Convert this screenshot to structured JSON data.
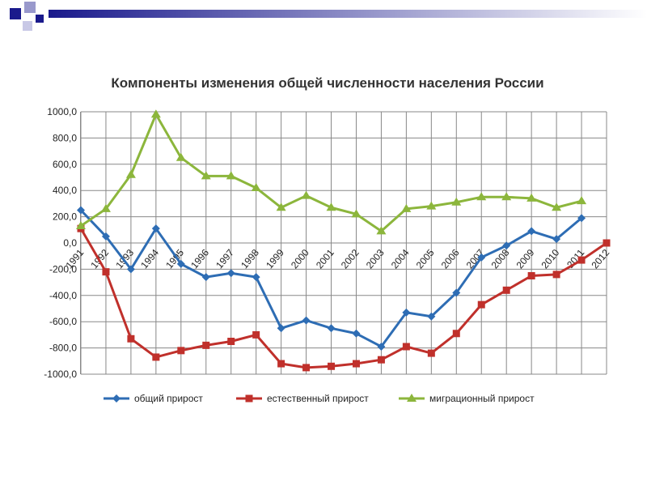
{
  "chart_data": {
    "type": "line",
    "title": "Компоненты изменения общей численности населения России",
    "categories": [
      "1991",
      "1992",
      "1993",
      "1994",
      "1995",
      "1996",
      "1997",
      "1998",
      "1999",
      "2000",
      "2001",
      "2002",
      "2003",
      "2004",
      "2005",
      "2006",
      "2007",
      "2008",
      "2009",
      "2010",
      "2011",
      "2012"
    ],
    "series": [
      {
        "name": "общий прирост",
        "color": "#2e6db4",
        "marker": "diamond",
        "values": [
          250,
          50,
          -200,
          110,
          -160,
          -260,
          -230,
          -260,
          -650,
          -590,
          -650,
          -690,
          -790,
          -530,
          -560,
          -380,
          -110,
          -20,
          90,
          30,
          190,
          null
        ]
      },
      {
        "name": "естественный прирост",
        "color": "#c0302b",
        "marker": "square",
        "values": [
          110,
          -220,
          -730,
          -870,
          -820,
          -780,
          -750,
          -700,
          -920,
          -950,
          -940,
          -920,
          -890,
          -790,
          -840,
          -690,
          -470,
          -360,
          -250,
          -240,
          -130,
          0
        ]
      },
      {
        "name": "миграционный прирост",
        "color": "#8cb63c",
        "marker": "triangle",
        "values": [
          130,
          260,
          520,
          980,
          650,
          510,
          510,
          420,
          270,
          360,
          270,
          220,
          90,
          260,
          280,
          310,
          350,
          350,
          340,
          270,
          320,
          null
        ]
      }
    ],
    "ylim": [
      -1000,
      1000
    ],
    "yticks": [
      {
        "value": -1000,
        "label": "-1000,0"
      },
      {
        "value": -800,
        "label": "-800,0"
      },
      {
        "value": -600,
        "label": "-600,0"
      },
      {
        "value": -400,
        "label": "-400,0"
      },
      {
        "value": -200,
        "label": "-200,0"
      },
      {
        "value": 0,
        "label": "0,0"
      },
      {
        "value": 200,
        "label": "200,0"
      },
      {
        "value": 400,
        "label": "400,0"
      },
      {
        "value": 600,
        "label": "600,0"
      },
      {
        "value": 800,
        "label": "800,0"
      },
      {
        "value": 1000,
        "label": "1000,0"
      }
    ],
    "grid": true
  }
}
